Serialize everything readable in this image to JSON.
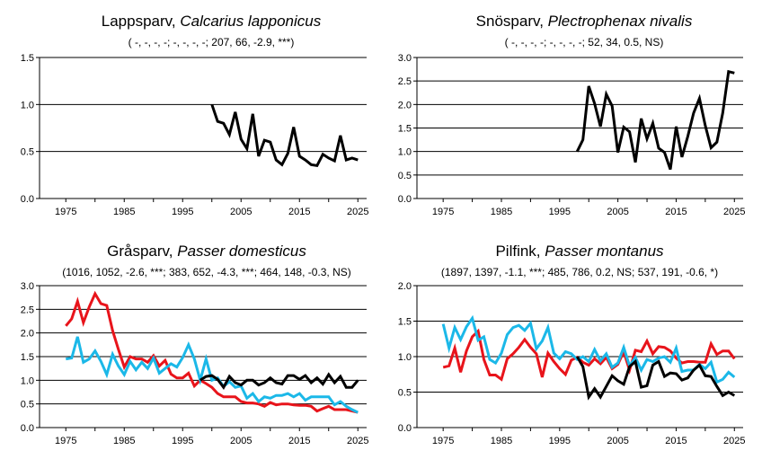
{
  "chart_data": [
    {
      "type": "line",
      "title_common": "Lappsparv, ",
      "title_latin": "Calcarius lapponicus",
      "subtitle": "( -, -, -, -;  -, -, -, -; 207, 66, -2.9, ***)",
      "x_ticks": [
        "1975",
        "1985",
        "1995",
        "2005",
        "2015",
        "2025"
      ],
      "y_ticks": [
        "0.0",
        "0.5",
        "1.0",
        "1.5"
      ],
      "xlim": [
        1970.5,
        2026.5
      ],
      "ylim": [
        0,
        1.5
      ],
      "gridlines": [
        0.5,
        1.0,
        1.5
      ],
      "series": [
        {
          "color": "#000000",
          "x": [
            2000,
            2001,
            2002,
            2003,
            2004,
            2005,
            2006,
            2007,
            2008,
            2009,
            2010,
            2011,
            2012,
            2013,
            2014,
            2015,
            2016,
            2017,
            2018,
            2019,
            2020,
            2021,
            2022,
            2023,
            2024,
            2025
          ],
          "values": [
            1.0,
            0.82,
            0.8,
            0.68,
            0.92,
            0.63,
            0.53,
            0.9,
            0.45,
            0.62,
            0.6,
            0.41,
            0.36,
            0.48,
            0.76,
            0.45,
            0.41,
            0.36,
            0.35,
            0.47,
            0.43,
            0.4,
            0.67,
            0.41,
            0.43,
            0.41
          ]
        }
      ]
    },
    {
      "type": "line",
      "title_common": "Snösparv, ",
      "title_latin": "Plectrophenax nivalis",
      "subtitle": "( -, -, -, -;  -, -, -, -; 52, 34, 0.5, NS)",
      "x_ticks": [
        "1975",
        "1985",
        "1995",
        "2005",
        "2015",
        "2025"
      ],
      "y_ticks": [
        "0.0",
        "0.5",
        "1.0",
        "1.5",
        "2.0",
        "2.5",
        "3.0"
      ],
      "xlim": [
        1970.5,
        2026.5
      ],
      "ylim": [
        0,
        3.0
      ],
      "gridlines": [
        0.5,
        1.0,
        1.5,
        2.0,
        2.5,
        3.0
      ],
      "series": [
        {
          "color": "#000000",
          "x": [
            1998,
            1999,
            2000,
            2001,
            2002,
            2003,
            2004,
            2005,
            2006,
            2007,
            2008,
            2009,
            2010,
            2011,
            2012,
            2013,
            2014,
            2015,
            2016,
            2017,
            2018,
            2019,
            2020,
            2021,
            2022,
            2023,
            2024,
            2025
          ],
          "values": [
            1.0,
            1.25,
            2.39,
            2.02,
            1.53,
            2.22,
            1.97,
            0.98,
            1.52,
            1.42,
            0.77,
            1.7,
            1.27,
            1.6,
            1.07,
            0.98,
            0.62,
            1.53,
            0.88,
            1.32,
            1.82,
            2.13,
            1.55,
            1.08,
            1.2,
            1.82,
            2.7,
            2.67
          ]
        }
      ]
    },
    {
      "type": "line",
      "title_common": "Gråsparv, ",
      "title_latin": "Passer domesticus",
      "subtitle": "(1016, 1052, -2.6, ***;  383, 652, -4.3, ***; 464, 148, -0.3, NS)",
      "x_ticks": [
        "1975",
        "1985",
        "1995",
        "2005",
        "2015",
        "2025"
      ],
      "y_ticks": [
        "0.0",
        "0.5",
        "1.0",
        "1.5",
        "2.0",
        "2.5",
        "3.0"
      ],
      "xlim": [
        1970.5,
        2026.5
      ],
      "ylim": [
        0,
        3.0
      ],
      "gridlines": [
        0.5,
        1.0,
        1.5,
        2.0,
        2.5,
        3.0
      ],
      "series": [
        {
          "color": "#e8141b",
          "x": [
            1975,
            1976,
            1977,
            1978,
            1979,
            1980,
            1981,
            1982,
            1983,
            1984,
            1985,
            1986,
            1987,
            1988,
            1989,
            1990,
            1991,
            1992,
            1993,
            1994,
            1995,
            1996,
            1997,
            1998,
            1999,
            2000,
            2001,
            2002,
            2003,
            2004,
            2005,
            2006,
            2007,
            2008,
            2009,
            2010,
            2011,
            2012,
            2013,
            2014,
            2015,
            2016,
            2017,
            2018,
            2019,
            2020,
            2021,
            2022,
            2023,
            2024,
            2025
          ],
          "values": [
            2.15,
            2.3,
            2.67,
            2.22,
            2.55,
            2.83,
            2.62,
            2.58,
            2.05,
            1.65,
            1.28,
            1.5,
            1.45,
            1.45,
            1.38,
            1.52,
            1.3,
            1.42,
            1.13,
            1.05,
            1.05,
            1.15,
            0.88,
            1.0,
            0.93,
            0.85,
            0.72,
            0.65,
            0.65,
            0.65,
            0.55,
            0.52,
            0.52,
            0.5,
            0.45,
            0.53,
            0.48,
            0.5,
            0.5,
            0.48,
            0.47,
            0.47,
            0.45,
            0.35,
            0.4,
            0.45,
            0.38,
            0.38,
            0.38,
            0.35,
            0.32
          ]
        },
        {
          "color": "#1bb8e8",
          "x": [
            1975,
            1976,
            1977,
            1978,
            1979,
            1980,
            1981,
            1982,
            1983,
            1984,
            1985,
            1986,
            1987,
            1988,
            1989,
            1990,
            1991,
            1992,
            1993,
            1994,
            1995,
            1996,
            1997,
            1998,
            1999,
            2000,
            2001,
            2002,
            2003,
            2004,
            2005,
            2006,
            2007,
            2008,
            2009,
            2010,
            2011,
            2012,
            2013,
            2014,
            2015,
            2016,
            2017,
            2018,
            2019,
            2020,
            2021,
            2022,
            2023,
            2024,
            2025
          ],
          "values": [
            1.45,
            1.47,
            1.92,
            1.38,
            1.45,
            1.62,
            1.4,
            1.12,
            1.55,
            1.3,
            1.12,
            1.4,
            1.22,
            1.38,
            1.25,
            1.47,
            1.15,
            1.25,
            1.35,
            1.28,
            1.48,
            1.75,
            1.45,
            1.0,
            1.45,
            1.0,
            1.05,
            0.87,
            0.97,
            0.85,
            0.88,
            0.62,
            0.72,
            0.55,
            0.65,
            0.62,
            0.68,
            0.68,
            0.72,
            0.65,
            0.72,
            0.58,
            0.65,
            0.65,
            0.65,
            0.65,
            0.48,
            0.55,
            0.45,
            0.38,
            0.32
          ]
        },
        {
          "color": "#000000",
          "x": [
            1998,
            1999,
            2000,
            2001,
            2002,
            2003,
            2004,
            2005,
            2006,
            2007,
            2008,
            2009,
            2010,
            2011,
            2012,
            2013,
            2014,
            2015,
            2016,
            2017,
            2018,
            2019,
            2020,
            2021,
            2022,
            2023,
            2024,
            2025
          ],
          "values": [
            1.0,
            1.08,
            1.1,
            1.02,
            0.85,
            1.08,
            0.95,
            0.9,
            1.0,
            1.0,
            0.9,
            0.95,
            1.05,
            0.95,
            0.92,
            1.1,
            1.1,
            1.02,
            1.1,
            0.95,
            1.05,
            0.92,
            1.12,
            0.95,
            1.08,
            0.85,
            0.85,
            1.0
          ]
        }
      ]
    },
    {
      "type": "line",
      "title_common": "Pilfink, ",
      "title_latin": "Passer montanus",
      "subtitle": "(1897, 1397, -1.1, ***;  485, 786, 0.2, NS; 537, 191, -0.6, *)",
      "x_ticks": [
        "1975",
        "1985",
        "1995",
        "2005",
        "2015",
        "2025"
      ],
      "y_ticks": [
        "0.0",
        "0.5",
        "1.0",
        "1.5",
        "2.0"
      ],
      "xlim": [
        1970.5,
        2026.5
      ],
      "ylim": [
        0,
        2.0
      ],
      "gridlines": [
        0.5,
        1.0,
        1.5,
        2.0
      ],
      "series": [
        {
          "color": "#e8141b",
          "x": [
            1975,
            1976,
            1977,
            1978,
            1979,
            1980,
            1981,
            1982,
            1983,
            1984,
            1985,
            1986,
            1987,
            1988,
            1989,
            1990,
            1991,
            1992,
            1993,
            1994,
            1995,
            1996,
            1997,
            1998,
            1999,
            2000,
            2001,
            2002,
            2003,
            2004,
            2005,
            2006,
            2007,
            2008,
            2009,
            2010,
            2011,
            2012,
            2013,
            2014,
            2015,
            2016,
            2017,
            2018,
            2019,
            2020,
            2021,
            2022,
            2023,
            2024,
            2025
          ],
          "values": [
            0.85,
            0.87,
            1.12,
            0.78,
            1.08,
            1.28,
            1.36,
            0.96,
            0.74,
            0.74,
            0.68,
            0.97,
            1.04,
            1.13,
            1.24,
            1.13,
            1.04,
            0.71,
            1.05,
            0.93,
            0.83,
            0.75,
            0.95,
            0.99,
            0.92,
            0.88,
            0.97,
            0.9,
            0.99,
            0.83,
            0.89,
            1.07,
            0.81,
            1.09,
            1.07,
            1.22,
            1.04,
            1.14,
            1.13,
            1.08,
            0.98,
            0.91,
            0.93,
            0.93,
            0.92,
            0.92,
            1.18,
            1.03,
            1.08,
            1.08,
            0.97
          ]
        },
        {
          "color": "#1bb8e8",
          "x": [
            1975,
            1976,
            1977,
            1978,
            1979,
            1980,
            1981,
            1982,
            1983,
            1984,
            1985,
            1986,
            1987,
            1988,
            1989,
            1990,
            1991,
            1992,
            1993,
            1994,
            1995,
            1996,
            1997,
            1998,
            1999,
            2000,
            2001,
            2002,
            2003,
            2004,
            2005,
            2006,
            2007,
            2008,
            2009,
            2010,
            2011,
            2012,
            2013,
            2014,
            2015,
            2016,
            2017,
            2018,
            2019,
            2020,
            2021,
            2022,
            2023,
            2024,
            2025
          ],
          "values": [
            1.46,
            1.12,
            1.41,
            1.24,
            1.42,
            1.54,
            1.23,
            1.28,
            0.96,
            0.91,
            1.05,
            1.31,
            1.41,
            1.44,
            1.37,
            1.47,
            1.11,
            1.22,
            1.41,
            1.05,
            0.97,
            1.07,
            1.04,
            0.96,
            1.0,
            0.93,
            1.1,
            0.94,
            1.04,
            0.85,
            0.91,
            1.13,
            0.87,
            0.99,
            0.81,
            0.96,
            0.93,
            0.98,
            1.0,
            0.92,
            1.12,
            0.79,
            0.81,
            0.81,
            0.89,
            0.83,
            0.92,
            0.64,
            0.68,
            0.78,
            0.71
          ]
        },
        {
          "color": "#000000",
          "x": [
            1998,
            1999,
            2000,
            2001,
            2002,
            2003,
            2004,
            2005,
            2006,
            2007,
            2008,
            2009,
            2010,
            2011,
            2012,
            2013,
            2014,
            2015,
            2016,
            2017,
            2018,
            2019,
            2020,
            2021,
            2022,
            2023,
            2024,
            2025
          ],
          "values": [
            1.0,
            0.86,
            0.43,
            0.55,
            0.43,
            0.58,
            0.73,
            0.66,
            0.61,
            0.86,
            0.93,
            0.57,
            0.59,
            0.88,
            0.93,
            0.72,
            0.77,
            0.76,
            0.67,
            0.7,
            0.81,
            0.88,
            0.73,
            0.72,
            0.58,
            0.45,
            0.5,
            0.45
          ]
        }
      ]
    }
  ]
}
